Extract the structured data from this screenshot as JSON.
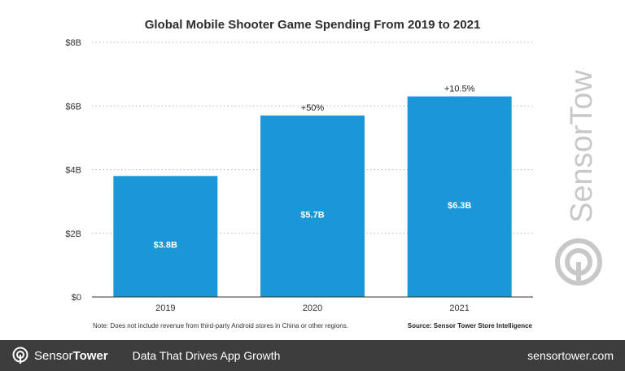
{
  "chart_data": {
    "type": "bar",
    "title": "Global Mobile Shooter Game Spending From 2019 to 2021",
    "categories": [
      "2019",
      "2020",
      "2021"
    ],
    "values": [
      3.8,
      5.7,
      6.3
    ],
    "value_labels": [
      "$3.8B",
      "$5.7B",
      "$6.3B"
    ],
    "growth_labels": [
      "",
      "+50%",
      "+10.5%"
    ],
    "ylim": [
      0,
      8
    ],
    "yticks": [
      0,
      2,
      4,
      6,
      8
    ],
    "ytick_labels": [
      "$0",
      "$2B",
      "$4B",
      "$6B",
      "$8B"
    ],
    "xlabel": "",
    "ylabel": "",
    "grid": true,
    "bar_color": "#1a97d7"
  },
  "note": "Note: Does not include revenue from third-party Android stores in China or other regions.",
  "source": "Source: Sensor Tower Store Intelligence",
  "watermark": {
    "text": "SensorTower",
    "icon": "sensor-tower-logo-icon",
    "color": "#c8c8c8"
  },
  "footer": {
    "brand_light": "Sensor",
    "brand_bold": "Tower",
    "tagline": "Data That Drives App Growth",
    "url": "sensortower.com",
    "background": "#3d3d3d"
  }
}
